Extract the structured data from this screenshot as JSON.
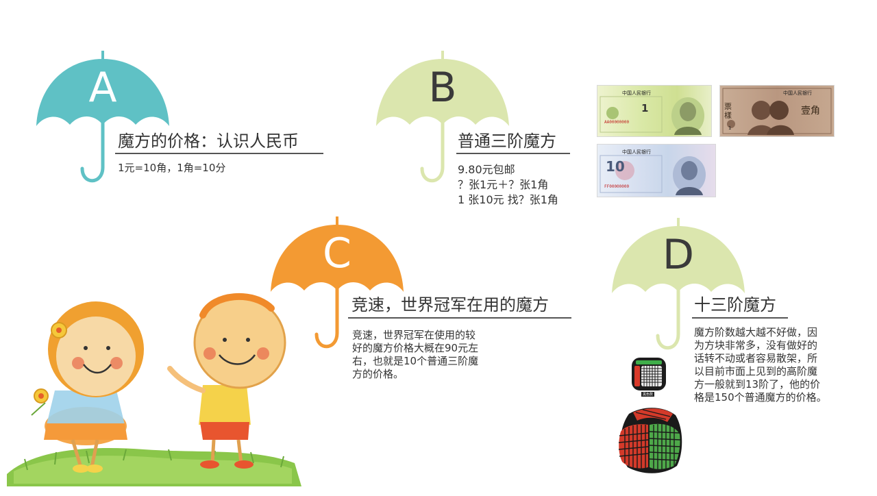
{
  "sections": {
    "a": {
      "letter": "A",
      "color": "#5fc1c5",
      "heading": "魔方的价格：认识人民币",
      "lines": [
        "1元=10角，1角=10分"
      ]
    },
    "b": {
      "letter": "B",
      "color": "#dbe6ae",
      "heading": "普通三阶魔方",
      "lines": [
        "9.80元包邮",
        "？张1元＋？张1角",
        "1 张10元 找？张1角"
      ]
    },
    "c": {
      "letter": "C",
      "color": "#f39a33",
      "heading": "竞速，世界冠军在用的魔方",
      "lines": [
        "竞速，世界冠军在使用的较",
        "好的魔方价格大概在90元左",
        "右，也就是10个普通三阶魔",
        "方的价格。"
      ]
    },
    "d": {
      "letter": "D",
      "color": "#dbe6ae",
      "heading": "十三阶魔方",
      "lines": [
        "魔方阶数越大越不好做，因",
        "为方块非常多，没有做好的",
        "话转不动或者容易散架，所",
        "以目前市面上见到的高阶魔",
        "方一般就到13阶了，他的价",
        "格是150个普通魔方的价格。"
      ]
    }
  },
  "banknotes": {
    "one_yuan": {
      "bank": "中国人民银行",
      "amount": "1",
      "serial": "AA00000000"
    },
    "one_jiao": {
      "bank": "中国人民银行",
      "amount": "1",
      "cn_amount": "壹角",
      "stamp": "票樣"
    },
    "ten_yuan": {
      "bank": "中国人民银行",
      "amount": "10",
      "serial": "FF00000000"
    }
  },
  "cube_label": "黑色款"
}
